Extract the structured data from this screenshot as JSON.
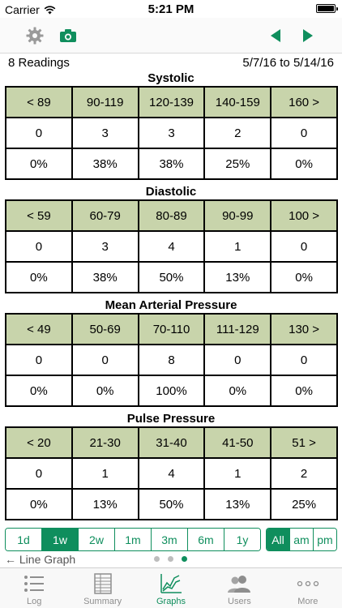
{
  "status": {
    "carrier": "Carrier",
    "time": "5:21 PM"
  },
  "toolbar": {
    "icons": [
      "gear-icon",
      "camera-icon",
      "back-arrow-icon",
      "forward-arrow-icon"
    ]
  },
  "summary": {
    "readings": "8 Readings",
    "date_range": "5/7/16 to 5/14/16"
  },
  "sections": [
    {
      "title": "Systolic",
      "ranges": [
        "< 89",
        "90-119",
        "120-139",
        "140-159",
        "160 >"
      ],
      "counts": [
        "0",
        "3",
        "3",
        "2",
        "0"
      ],
      "percents": [
        "0%",
        "38%",
        "38%",
        "25%",
        "0%"
      ]
    },
    {
      "title": "Diastolic",
      "ranges": [
        "< 59",
        "60-79",
        "80-89",
        "90-99",
        "100 >"
      ],
      "counts": [
        "0",
        "3",
        "4",
        "1",
        "0"
      ],
      "percents": [
        "0%",
        "38%",
        "50%",
        "13%",
        "0%"
      ]
    },
    {
      "title": "Mean Arterial Pressure",
      "ranges": [
        "< 49",
        "50-69",
        "70-110",
        "111-129",
        "130 >"
      ],
      "counts": [
        "0",
        "0",
        "8",
        "0",
        "0"
      ],
      "percents": [
        "0%",
        "0%",
        "100%",
        "0%",
        "0%"
      ]
    },
    {
      "title": "Pulse Pressure",
      "ranges": [
        "< 20",
        "21-30",
        "31-40",
        "41-50",
        "51 >"
      ],
      "counts": [
        "0",
        "1",
        "4",
        "1",
        "2"
      ],
      "percents": [
        "0%",
        "13%",
        "50%",
        "13%",
        "25%"
      ]
    }
  ],
  "period_options": [
    "1d",
    "1w",
    "2w",
    "1m",
    "3m",
    "6m",
    "1y"
  ],
  "period_selected": "1w",
  "time_of_day_options": [
    "All",
    "am",
    "pm"
  ],
  "time_of_day_selected": "All",
  "line_graph_link": "← Line Graph",
  "page_dots": {
    "count": 3,
    "active": 3
  },
  "tabs": [
    {
      "label": "Log",
      "icon": "list-icon"
    },
    {
      "label": "Summary",
      "icon": "table-icon"
    },
    {
      "label": "Graphs",
      "icon": "graph-icon"
    },
    {
      "label": "Users",
      "icon": "users-icon"
    },
    {
      "label": "More",
      "icon": "more-icon"
    }
  ],
  "active_tab": "Graphs",
  "colors": {
    "accent": "#0f8e5d",
    "header_fill": "#c8d4ab"
  }
}
